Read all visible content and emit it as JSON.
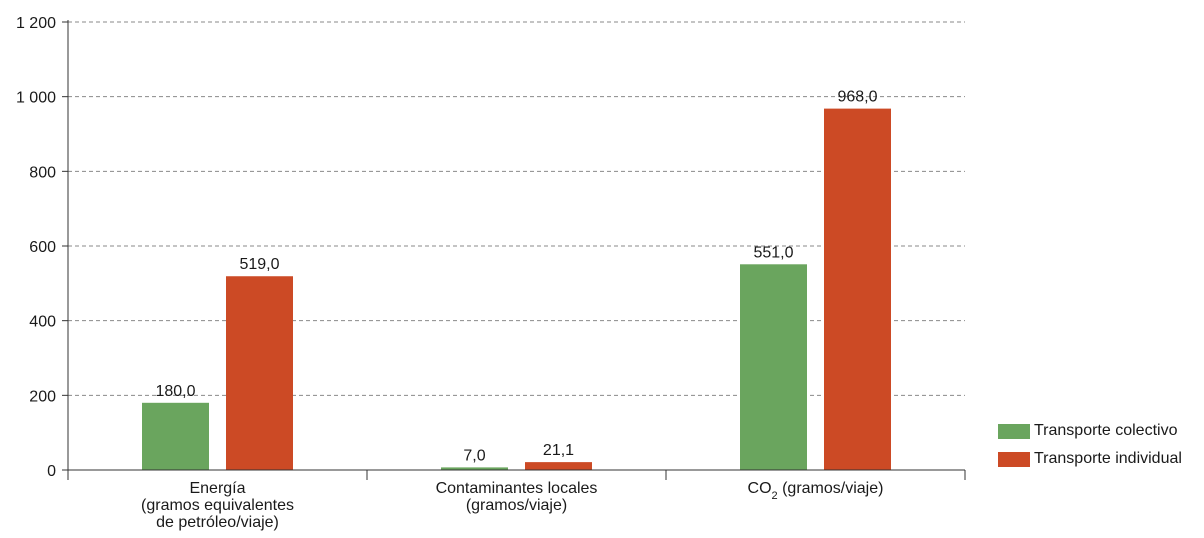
{
  "colors": {
    "colectivo": "#6aa55e",
    "individual": "#cc4a25",
    "grid": "#8a8a8a",
    "axis": "#333333"
  },
  "chart_data": {
    "type": "bar",
    "categories": [
      {
        "lines": [
          "Energía",
          "(gramos equivalentes",
          "de petróleo/viaje)"
        ]
      },
      {
        "lines": [
          "Contaminantes locales",
          "(gramos/viaje)"
        ]
      },
      {
        "co2": true,
        "base": "CO",
        "sub": "2",
        "rest": " (gramos/viaje)"
      }
    ],
    "series": [
      {
        "name": "Transporte colectivo",
        "color_key": "colectivo",
        "values": [
          180.0,
          7.0,
          551.0
        ],
        "labels": [
          "180,0",
          "7,0",
          "551,0"
        ]
      },
      {
        "name": "Transporte individual",
        "color_key": "individual",
        "values": [
          519.0,
          21.1,
          968.0
        ],
        "labels": [
          "519,0",
          "21,1",
          "968,0"
        ]
      }
    ],
    "yticks": [
      0,
      200,
      400,
      600,
      800,
      1000,
      1200
    ],
    "ytick_labels": [
      "0",
      "200",
      "400",
      "600",
      "800",
      "1 000",
      "1 200"
    ],
    "ylim": [
      0,
      1200
    ],
    "grid": true,
    "legend_position": "bottom-right"
  },
  "legend": {
    "items": [
      {
        "label": "Transporte colectivo"
      },
      {
        "label": "Transporte individual"
      }
    ]
  }
}
